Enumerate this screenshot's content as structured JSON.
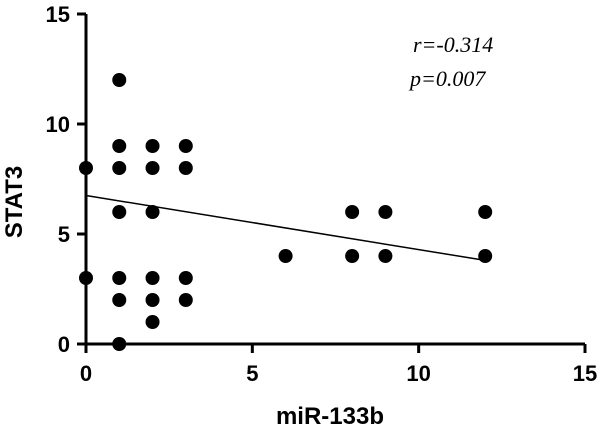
{
  "chart_data": {
    "type": "scatter",
    "xlabel": "miR-133b",
    "ylabel": "STAT3",
    "xlim": [
      0,
      15
    ],
    "ylim": [
      0,
      15
    ],
    "x_ticks": [
      0,
      5,
      10,
      15
    ],
    "y_ticks": [
      0,
      5,
      10,
      15
    ],
    "grid": false,
    "series": [
      {
        "points": [
          {
            "x": 0,
            "y": 8
          },
          {
            "x": 0,
            "y": 3
          },
          {
            "x": 1,
            "y": 12
          },
          {
            "x": 1,
            "y": 9
          },
          {
            "x": 1,
            "y": 8
          },
          {
            "x": 1,
            "y": 6
          },
          {
            "x": 1,
            "y": 3
          },
          {
            "x": 1,
            "y": 2
          },
          {
            "x": 1,
            "y": 0
          },
          {
            "x": 2,
            "y": 9
          },
          {
            "x": 2,
            "y": 8
          },
          {
            "x": 2,
            "y": 6
          },
          {
            "x": 2,
            "y": 3
          },
          {
            "x": 2,
            "y": 2
          },
          {
            "x": 2,
            "y": 1
          },
          {
            "x": 3,
            "y": 9
          },
          {
            "x": 3,
            "y": 8
          },
          {
            "x": 3,
            "y": 3
          },
          {
            "x": 3,
            "y": 2
          },
          {
            "x": 6,
            "y": 4
          },
          {
            "x": 8,
            "y": 6
          },
          {
            "x": 8,
            "y": 4
          },
          {
            "x": 9,
            "y": 6
          },
          {
            "x": 9,
            "y": 4
          },
          {
            "x": 12,
            "y": 6
          },
          {
            "x": 12,
            "y": 4
          }
        ]
      }
    ],
    "trendline": {
      "x": [
        0,
        12
      ],
      "y": [
        6.75,
        3.8
      ]
    },
    "annotations": {
      "r_text": "r=-0.314",
      "p_text": "p=0.007"
    }
  }
}
